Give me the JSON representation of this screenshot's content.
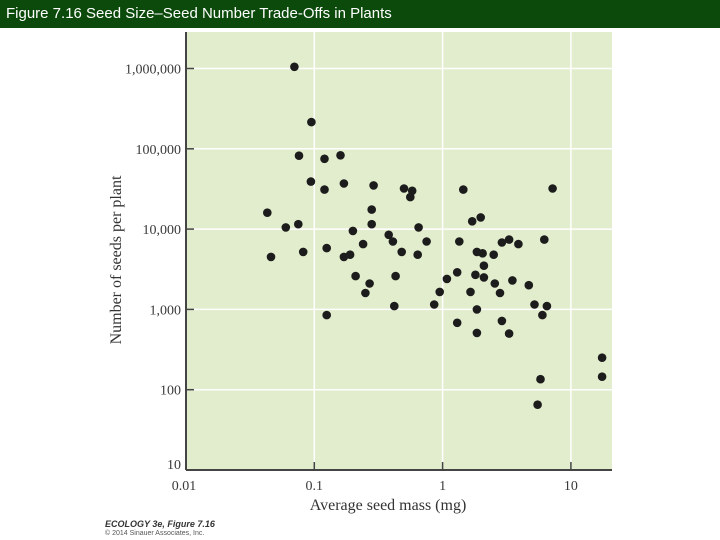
{
  "header": {
    "title": "Figure 7.16  Seed Size–Seed Number Trade-Offs in Plants"
  },
  "credits": {
    "line1": "ECOLOGY 3e, Figure 7.16",
    "line2": "© 2014 Sinauer Associates, Inc."
  },
  "colors": {
    "title_bar": "#0b4a0b",
    "plot_background": "#e1edcc",
    "gridline": "#ffffff",
    "point": "#1c1c1c",
    "axis": "#444444"
  },
  "chart_data": {
    "type": "scatter",
    "title": "Seed Size–Seed Number Trade-Offs in Plants",
    "xlabel": "Average seed mass (mg)",
    "ylabel": "Number of seeds per plant",
    "xscale": "log",
    "yscale": "log",
    "xlim": [
      0.01,
      20
    ],
    "ylim": [
      10,
      3000000
    ],
    "x_ticks": [
      "0.01",
      "0.1",
      "1",
      "10"
    ],
    "y_ticks": [
      "10",
      "100",
      "1,000",
      "10,000",
      "100,000",
      "1,000,000"
    ],
    "grid": true,
    "legend": null,
    "points": [
      {
        "x": 0.07,
        "y": 1050000
      },
      {
        "x": 0.095,
        "y": 215000
      },
      {
        "x": 0.076,
        "y": 82000
      },
      {
        "x": 0.12,
        "y": 75000
      },
      {
        "x": 0.16,
        "y": 83000
      },
      {
        "x": 0.094,
        "y": 39000
      },
      {
        "x": 0.12,
        "y": 31000
      },
      {
        "x": 0.17,
        "y": 37000
      },
      {
        "x": 0.29,
        "y": 35000
      },
      {
        "x": 0.043,
        "y": 16000
      },
      {
        "x": 0.075,
        "y": 11500
      },
      {
        "x": 0.06,
        "y": 10500
      },
      {
        "x": 0.28,
        "y": 17500
      },
      {
        "x": 0.28,
        "y": 11500
      },
      {
        "x": 0.046,
        "y": 4500
      },
      {
        "x": 0.082,
        "y": 5200
      },
      {
        "x": 0.125,
        "y": 5800
      },
      {
        "x": 0.17,
        "y": 4500
      },
      {
        "x": 0.19,
        "y": 4800
      },
      {
        "x": 0.2,
        "y": 9500
      },
      {
        "x": 0.24,
        "y": 6500
      },
      {
        "x": 0.38,
        "y": 8500
      },
      {
        "x": 0.41,
        "y": 7000
      },
      {
        "x": 0.48,
        "y": 5200
      },
      {
        "x": 0.5,
        "y": 32000
      },
      {
        "x": 0.58,
        "y": 30000
      },
      {
        "x": 0.56,
        "y": 25000
      },
      {
        "x": 0.65,
        "y": 10500
      },
      {
        "x": 0.64,
        "y": 4800
      },
      {
        "x": 0.75,
        "y": 7000
      },
      {
        "x": 0.21,
        "y": 2600
      },
      {
        "x": 0.27,
        "y": 2100
      },
      {
        "x": 0.25,
        "y": 1600
      },
      {
        "x": 0.43,
        "y": 2600
      },
      {
        "x": 0.42,
        "y": 1100
      },
      {
        "x": 0.125,
        "y": 850
      },
      {
        "x": 0.86,
        "y": 1150
      },
      {
        "x": 0.95,
        "y": 1650
      },
      {
        "x": 1.08,
        "y": 2400
      },
      {
        "x": 1.3,
        "y": 2900
      },
      {
        "x": 1.35,
        "y": 7000
      },
      {
        "x": 1.45,
        "y": 31000
      },
      {
        "x": 1.7,
        "y": 12500
      },
      {
        "x": 1.98,
        "y": 14000
      },
      {
        "x": 1.85,
        "y": 5200
      },
      {
        "x": 2.05,
        "y": 5000
      },
      {
        "x": 2.1,
        "y": 3500
      },
      {
        "x": 1.8,
        "y": 2700
      },
      {
        "x": 2.1,
        "y": 2500
      },
      {
        "x": 1.65,
        "y": 1650
      },
      {
        "x": 1.3,
        "y": 680
      },
      {
        "x": 1.85,
        "y": 1000
      },
      {
        "x": 1.85,
        "y": 510
      },
      {
        "x": 2.5,
        "y": 4800
      },
      {
        "x": 2.9,
        "y": 6800
      },
      {
        "x": 3.3,
        "y": 7400
      },
      {
        "x": 3.9,
        "y": 6500
      },
      {
        "x": 2.55,
        "y": 2100
      },
      {
        "x": 2.8,
        "y": 1600
      },
      {
        "x": 3.5,
        "y": 2300
      },
      {
        "x": 4.7,
        "y": 2000
      },
      {
        "x": 2.9,
        "y": 720
      },
      {
        "x": 3.3,
        "y": 500
      },
      {
        "x": 5.2,
        "y": 1150
      },
      {
        "x": 6.0,
        "y": 850
      },
      {
        "x": 6.5,
        "y": 1100
      },
      {
        "x": 6.2,
        "y": 7400
      },
      {
        "x": 7.2,
        "y": 32000
      },
      {
        "x": 5.8,
        "y": 135
      },
      {
        "x": 5.5,
        "y": 65
      },
      {
        "x": 17.5,
        "y": 250
      },
      {
        "x": 17.5,
        "y": 145
      }
    ]
  }
}
